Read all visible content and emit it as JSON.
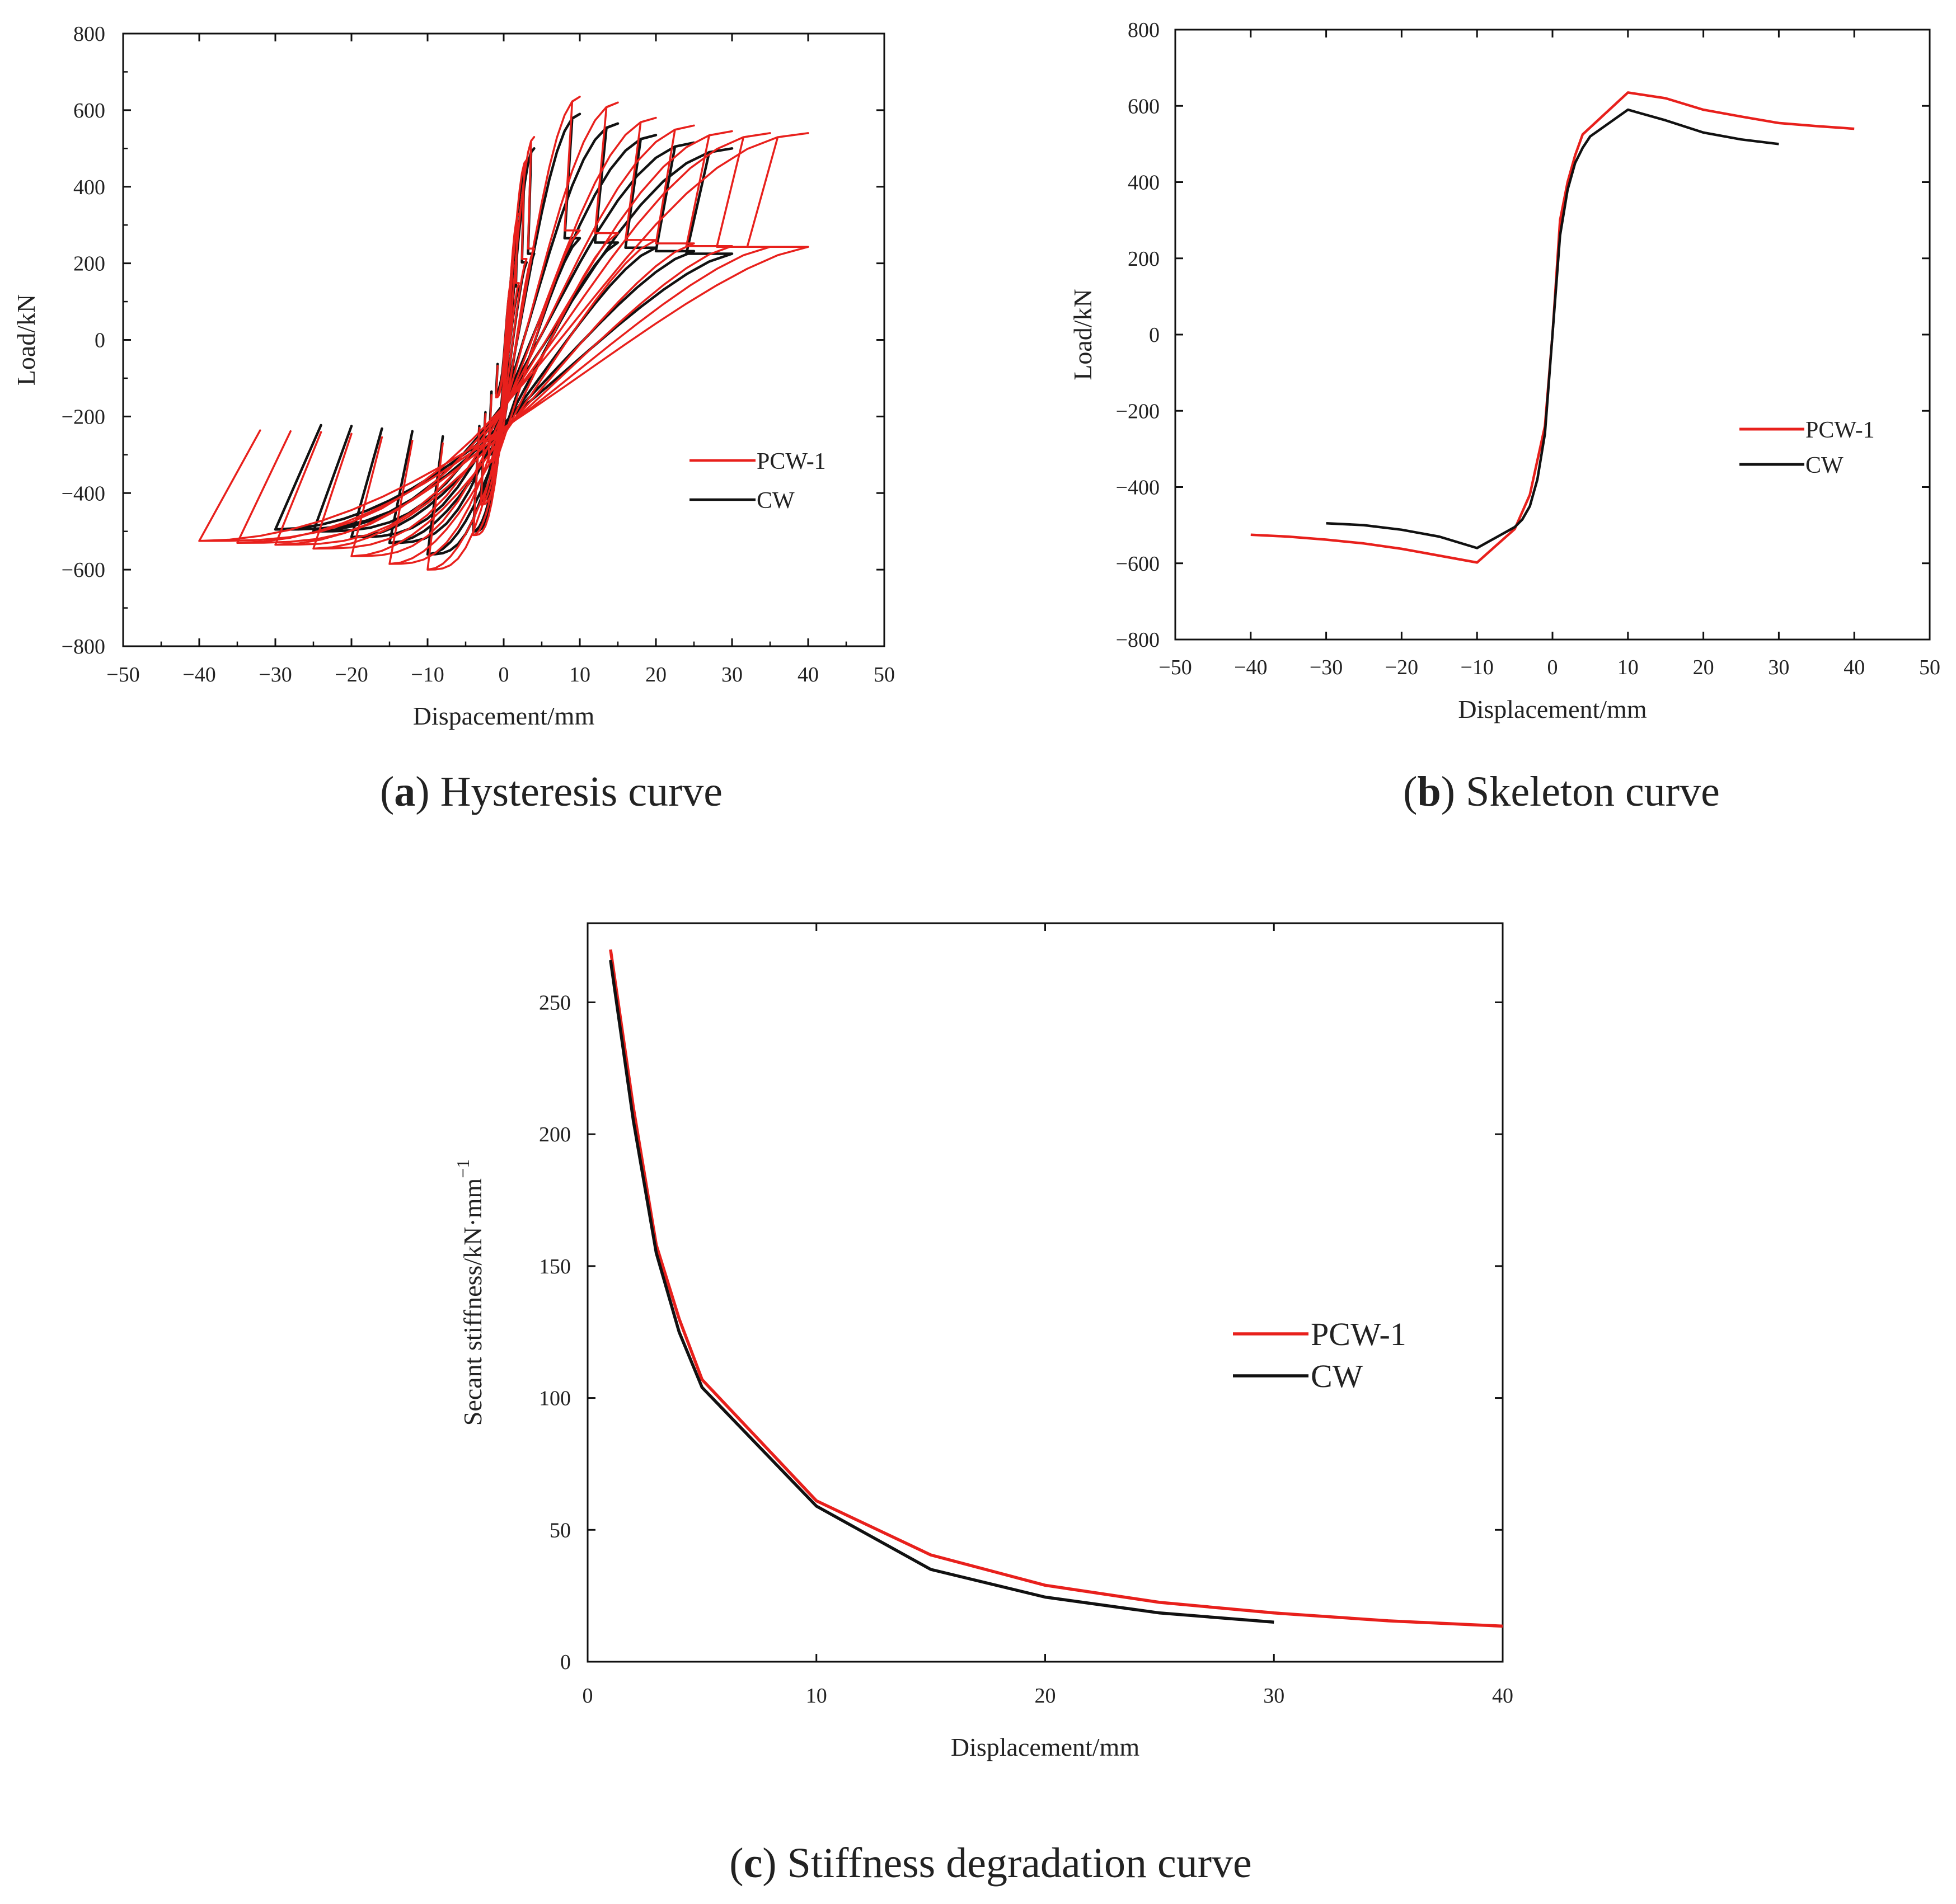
{
  "colors": {
    "PCW-1": "#e8201c",
    "CW": "#111111"
  },
  "captions": [
    {
      "pre": "(",
      "letter": "a",
      "post": ") Hysteresis curve"
    },
    {
      "pre": "(",
      "letter": "b",
      "post": ") Skeleton curve"
    },
    {
      "pre": "(",
      "letter": "c",
      "post": ") Stiffness degradation curve"
    }
  ],
  "chart_data": [
    {
      "id": "a",
      "type": "line",
      "title": "Hysteresis curve",
      "xlabel": "Dispacement/mm",
      "ylabel": "Load/kN",
      "xlim": [
        -50,
        50
      ],
      "ylim": [
        -800,
        800
      ],
      "xticks": [
        -50,
        -40,
        -30,
        -20,
        -10,
        0,
        10,
        20,
        30,
        40,
        50
      ],
      "yticks": [
        -800,
        -600,
        -400,
        -200,
        0,
        200,
        400,
        600,
        800
      ],
      "tick_labels_x": [
        "−50",
        "−40",
        "−30",
        "−20",
        "−10",
        "0",
        "10",
        "20",
        "30",
        "40",
        "50"
      ],
      "tick_labels_y": [
        "−800",
        "−600",
        "−400",
        "−200",
        "0",
        "200",
        "400",
        "600",
        "800"
      ],
      "legend": [
        "PCW-1",
        "CW"
      ],
      "legend_position": "center-right",
      "series": [
        {
          "name": "PCW-1",
          "color_key": "PCW-1",
          "loops": [
            {
              "d": 1,
              "fp": 150,
              "fn": -150
            },
            {
              "d": 2,
              "fp": 330,
              "fn": -320
            },
            {
              "d": 3,
              "fp": 470,
              "fn": -430
            },
            {
              "d": 4,
              "fp": 530,
              "fn": -510
            },
            {
              "d": 10,
              "fp": 635,
              "fn": -600
            },
            {
              "d": 15,
              "fp": 620,
              "fn": -585
            },
            {
              "d": 20,
              "fp": 580,
              "fn": -565
            },
            {
              "d": 25,
              "fp": 560,
              "fn": -545
            },
            {
              "d": 30,
              "fp": 545,
              "fn": -535
            },
            {
              "d": 35,
              "fp": 540,
              "fn": -530
            },
            {
              "d": 40,
              "fp": 540,
              "fn": -525
            }
          ]
        },
        {
          "name": "CW",
          "color_key": "CW",
          "loops": [
            {
              "d": 1,
              "fp": 140,
              "fn": -140
            },
            {
              "d": 2,
              "fp": 310,
              "fn": -300
            },
            {
              "d": 3,
              "fp": 450,
              "fn": -420
            },
            {
              "d": 4,
              "fp": 500,
              "fn": -500
            },
            {
              "d": 10,
              "fp": 590,
              "fn": -560
            },
            {
              "d": 15,
              "fp": 565,
              "fn": -530
            },
            {
              "d": 20,
              "fp": 535,
              "fn": -515
            },
            {
              "d": 25,
              "fp": 515,
              "fn": -500
            },
            {
              "d": 30,
              "fp": 500,
              "fn": -495
            }
          ]
        }
      ]
    },
    {
      "id": "b",
      "type": "line",
      "title": "Skeleton curve",
      "xlabel": "Displacement/mm",
      "ylabel": "Load/kN",
      "xlim": [
        -50,
        50
      ],
      "ylim": [
        -800,
        800
      ],
      "xticks": [
        -50,
        -40,
        -30,
        -20,
        -10,
        0,
        10,
        20,
        30,
        40,
        50
      ],
      "yticks": [
        -800,
        -600,
        -400,
        -200,
        0,
        200,
        400,
        600,
        800
      ],
      "tick_labels_x": [
        "−50",
        "−40",
        "−30",
        "−20",
        "−10",
        "0",
        "10",
        "20",
        "30",
        "40",
        "50"
      ],
      "tick_labels_y": [
        "−800",
        "−600",
        "−400",
        "−200",
        "0",
        "200",
        "400",
        "600",
        "800"
      ],
      "legend": [
        "PCW-1",
        "CW"
      ],
      "legend_position": "center-right",
      "series": [
        {
          "name": "PCW-1",
          "color_key": "PCW-1",
          "x": [
            -40,
            -35,
            -30,
            -25,
            -20,
            -15,
            -10,
            -5,
            -3,
            -2,
            -1,
            0,
            1,
            2,
            3,
            4,
            10,
            15,
            20,
            25,
            30,
            35,
            40
          ],
          "y": [
            -525,
            -530,
            -538,
            -548,
            -562,
            -580,
            -598,
            -510,
            -420,
            -330,
            -240,
            0,
            300,
            400,
            470,
            525,
            635,
            620,
            590,
            572,
            555,
            547,
            540
          ]
        },
        {
          "name": "CW",
          "color_key": "CW",
          "x": [
            -30,
            -25,
            -20,
            -15,
            -10,
            -5,
            -4,
            -3,
            -2,
            -1,
            0,
            1,
            2,
            3,
            4,
            5,
            10,
            15,
            20,
            25,
            30
          ],
          "y": [
            -495,
            -500,
            -512,
            -530,
            -560,
            -505,
            -485,
            -450,
            -380,
            -260,
            0,
            260,
            380,
            450,
            490,
            520,
            590,
            562,
            530,
            512,
            500
          ]
        }
      ]
    },
    {
      "id": "c",
      "type": "line",
      "title": "Stiffness degradation curve",
      "xlabel": "Displacement/mm",
      "ylabel": "Secant stiffness/kN·mm",
      "ylabel_sup": "−1",
      "xlim": [
        0,
        40
      ],
      "ylim": [
        0,
        280
      ],
      "xticks": [
        0,
        10,
        20,
        30,
        40
      ],
      "yticks": [
        0,
        50,
        100,
        150,
        200,
        250
      ],
      "tick_labels_x": [
        "0",
        "10",
        "20",
        "30",
        "40"
      ],
      "tick_labels_y": [
        "0",
        "50",
        "100",
        "150",
        "200",
        "250"
      ],
      "legend": [
        "PCW-1",
        "CW"
      ],
      "legend_position": "center-right",
      "series": [
        {
          "name": "PCW-1",
          "color_key": "PCW-1",
          "x": [
            1,
            2,
            3,
            4,
            5,
            10,
            15,
            20,
            25,
            30,
            35,
            40
          ],
          "y": [
            270,
            210,
            158,
            130,
            107,
            61,
            40.5,
            29,
            22.5,
            18.5,
            15.5,
            13.5
          ]
        },
        {
          "name": "CW",
          "color_key": "CW",
          "x": [
            1,
            2,
            3,
            4,
            5,
            10,
            15,
            20,
            25,
            30
          ],
          "y": [
            266,
            205,
            155,
            125,
            104,
            59,
            35,
            24.5,
            18.5,
            15
          ]
        }
      ]
    }
  ]
}
